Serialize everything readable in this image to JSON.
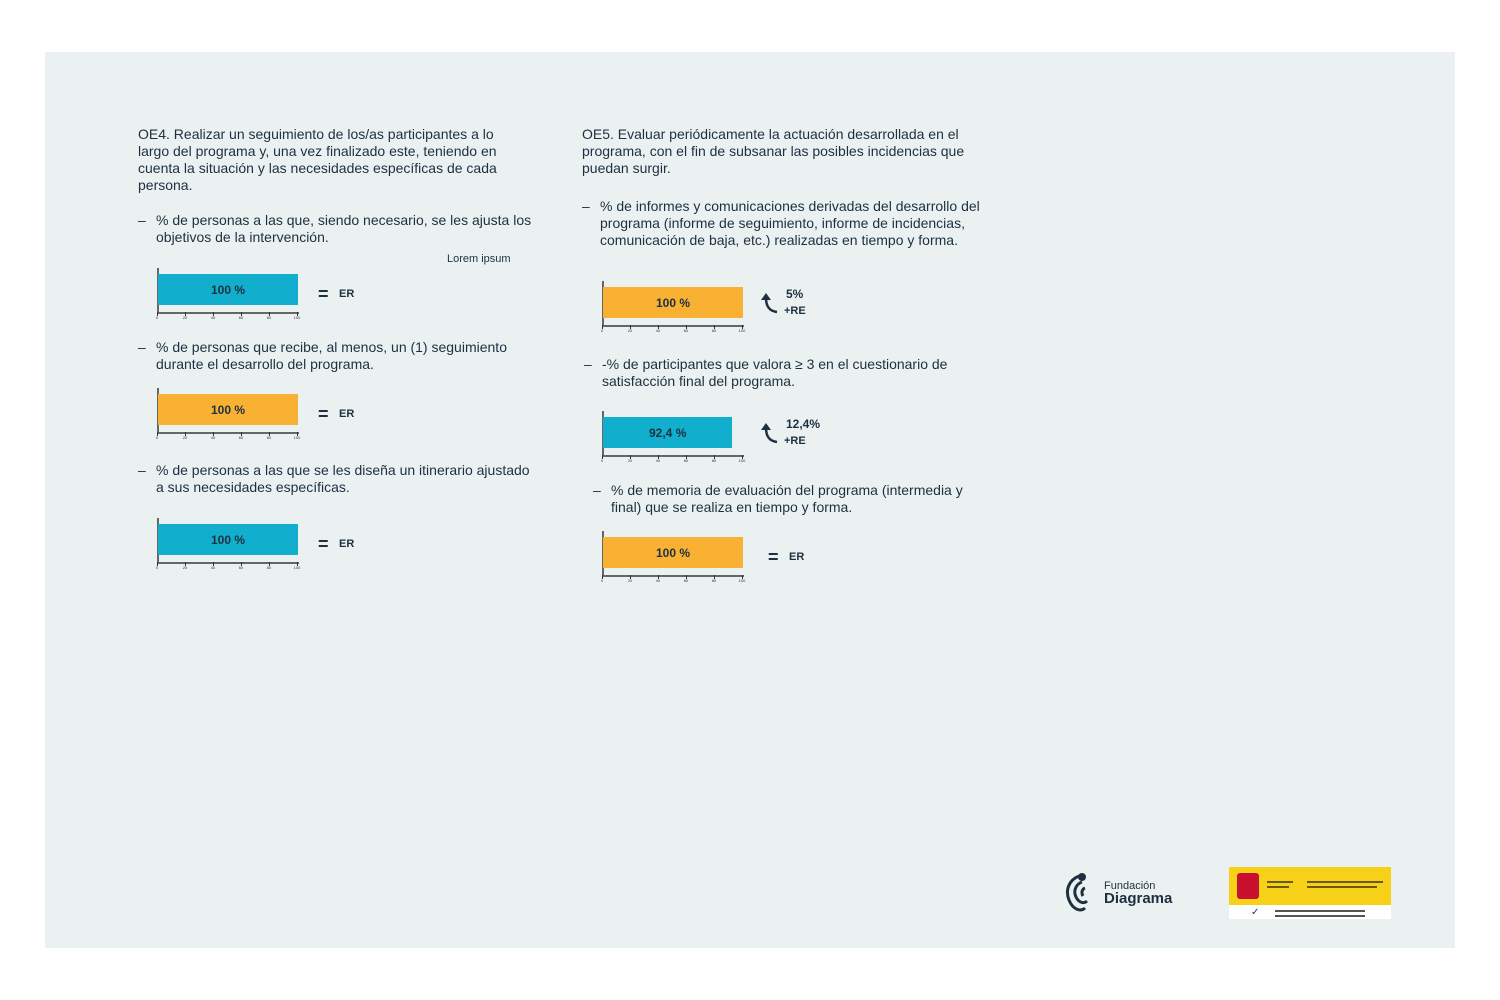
{
  "colors": {
    "background": "#ebf1f1",
    "blue": "#12aecd",
    "orange": "#f8b133",
    "text": "#1c3040"
  },
  "oe4": {
    "title": "OE4. Realizar un seguimiento de los/as participantes a lo largo del programa y, una vez finalizado este, teniendo en cuenta la situación y las necesidades específicas de cada persona.",
    "note": "Lorem ipsum",
    "items": [
      {
        "dash": "–",
        "text": "% de personas a las que, siendo necesario, se les ajusta los objetivos de la intervención.",
        "value": 100,
        "label": "100 %",
        "color": "#12aecd",
        "result_icon": "equals-icon",
        "result": "ER"
      },
      {
        "dash": "–",
        "text": "% de personas que recibe, al menos, un (1) seguimiento durante el desarrollo del programa.",
        "value": 100,
        "label": "100 %",
        "color": "#f8b133",
        "result_icon": "equals-icon",
        "result": "ER"
      },
      {
        "dash": "–",
        "text": "% de personas a las que se les diseña un itinerario ajustado a sus necesidades específicas.",
        "value": 100,
        "label": "100 %",
        "color": "#12aecd",
        "result_icon": "equals-icon",
        "result": "ER"
      }
    ]
  },
  "oe5": {
    "title": "OE5. Evaluar periódicamente la actuación desarrollada en el programa, con el fin de subsanar las posibles incidencias que puedan surgir.",
    "items": [
      {
        "dash": "–",
        "text": "% de informes y comunicaciones derivadas del desarrollo del programa (informe de seguimiento, informe de incidencias, comunicación de baja, etc.) realizadas en tiempo y forma.",
        "value": 100,
        "label": "100 %",
        "color": "#f8b133",
        "result_icon": "curved-arrow-up-icon",
        "delta": "5%",
        "result": "+RE"
      },
      {
        "dash": "–",
        "text": "-% de participantes que valora ≥ 3 en el cuestionario de satisfacción final del programa.",
        "value": 92.4,
        "label": "92,4 %",
        "color": "#12aecd",
        "result_icon": "curved-arrow-up-icon",
        "delta": "12,4%",
        "result": "+RE"
      },
      {
        "dash": "–",
        "text": "% de memoria de evaluación del programa (intermedia y final) que se realiza en tiempo y forma.",
        "value": 100,
        "label": "100 %",
        "color": "#f8b133",
        "result_icon": "equals-icon",
        "result": "ER"
      }
    ]
  },
  "axis_ticks": [
    "0",
    "20",
    "40",
    "60",
    "80",
    "100"
  ],
  "footer": {
    "logo_line1": "Fundación",
    "logo_line2": "Diagrama",
    "gov_logo": "Gobierno de España - Ministerio de Derechos Sociales y Agenda 2030"
  }
}
